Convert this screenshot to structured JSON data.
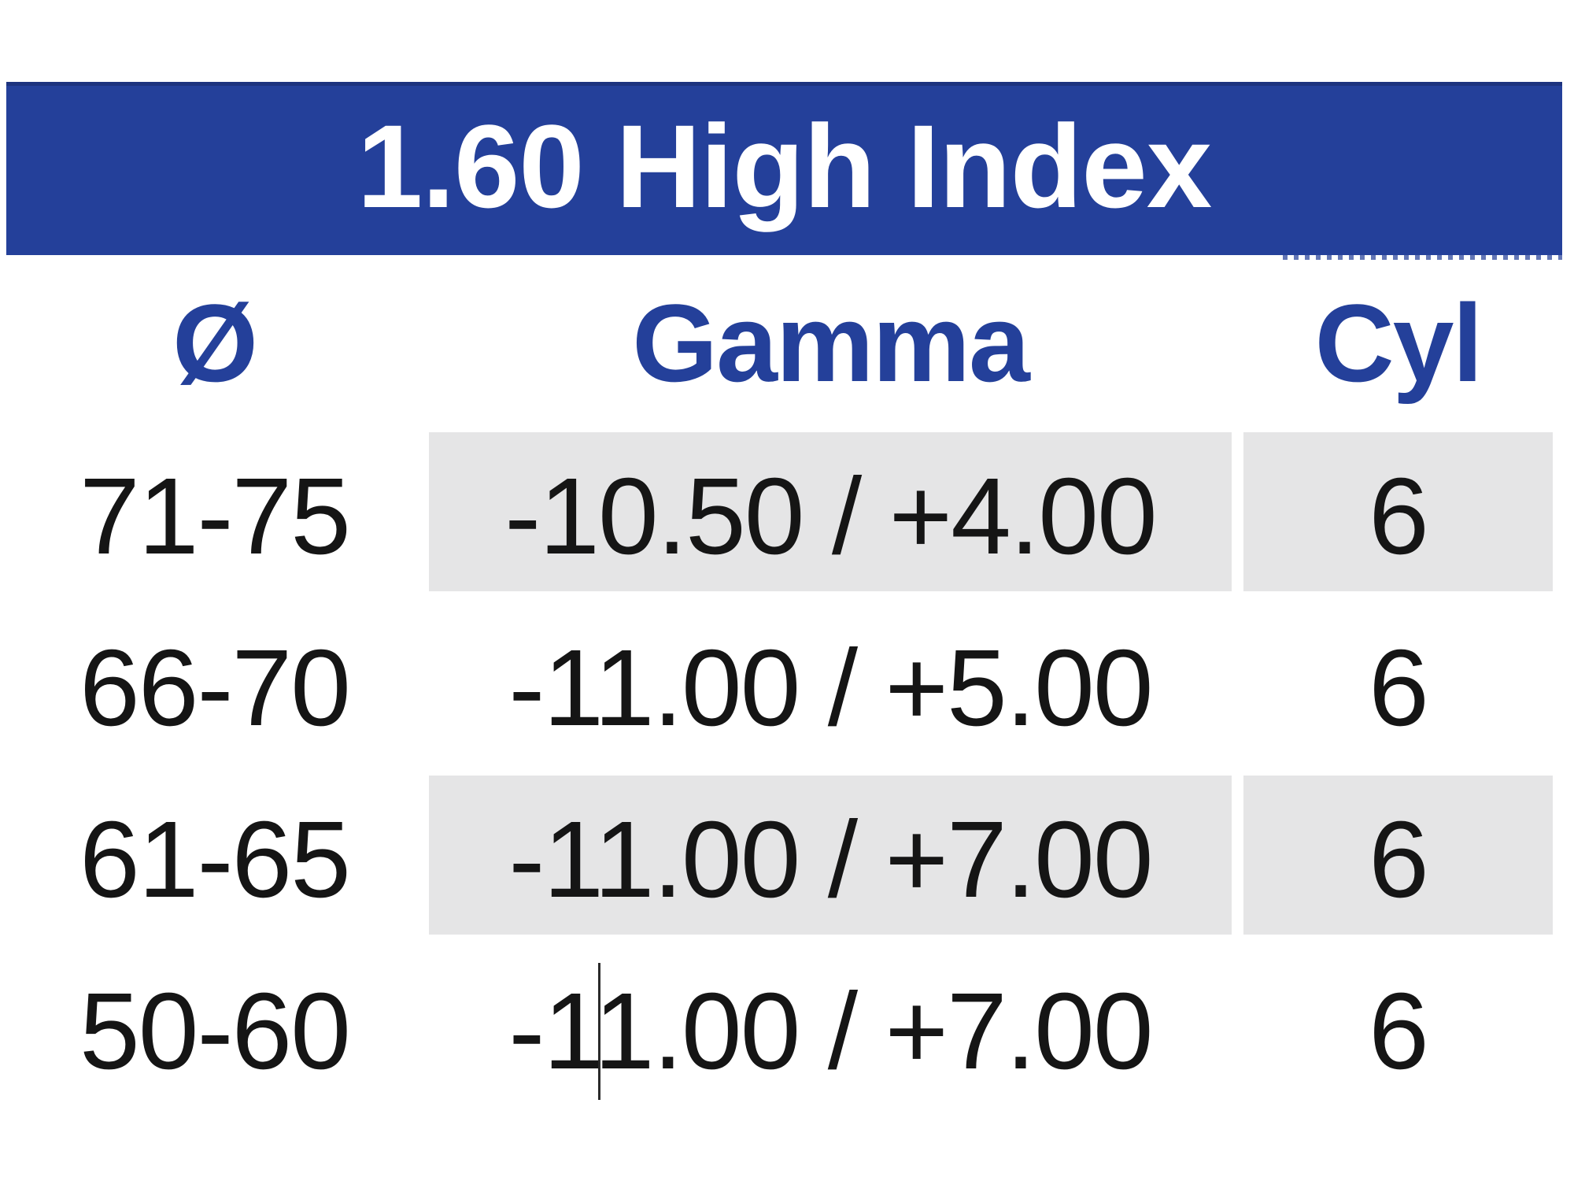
{
  "banner": {
    "title": "1.60 High Index"
  },
  "header": {
    "diameter": "Ø",
    "gamma": "Gamma",
    "cyl": "Cyl"
  },
  "rows": [
    {
      "diameter": "71-75",
      "gamma": "-10.50 / +4.00",
      "cyl": "6"
    },
    {
      "diameter": "66-70",
      "gamma": "-11.00 / +5.00",
      "cyl": "6"
    },
    {
      "diameter": "61-65",
      "gamma": "-11.00 / +7.00",
      "cyl": "6"
    },
    {
      "diameter": "50-60",
      "gamma": "-11.00 / +7.00",
      "cyl": "6"
    }
  ],
  "text_cursor": {
    "visible": true,
    "location": "row 50-60, Gamma value, between '-1' and '1.00'"
  },
  "colors": {
    "banner_blue": "#24409a",
    "banner_top_edge": "#1d337e",
    "header_text_blue": "#24409a",
    "shaded_cell_gray": "#e5e5e6",
    "body_text": "#151515",
    "banner_text": "#ffffff"
  }
}
